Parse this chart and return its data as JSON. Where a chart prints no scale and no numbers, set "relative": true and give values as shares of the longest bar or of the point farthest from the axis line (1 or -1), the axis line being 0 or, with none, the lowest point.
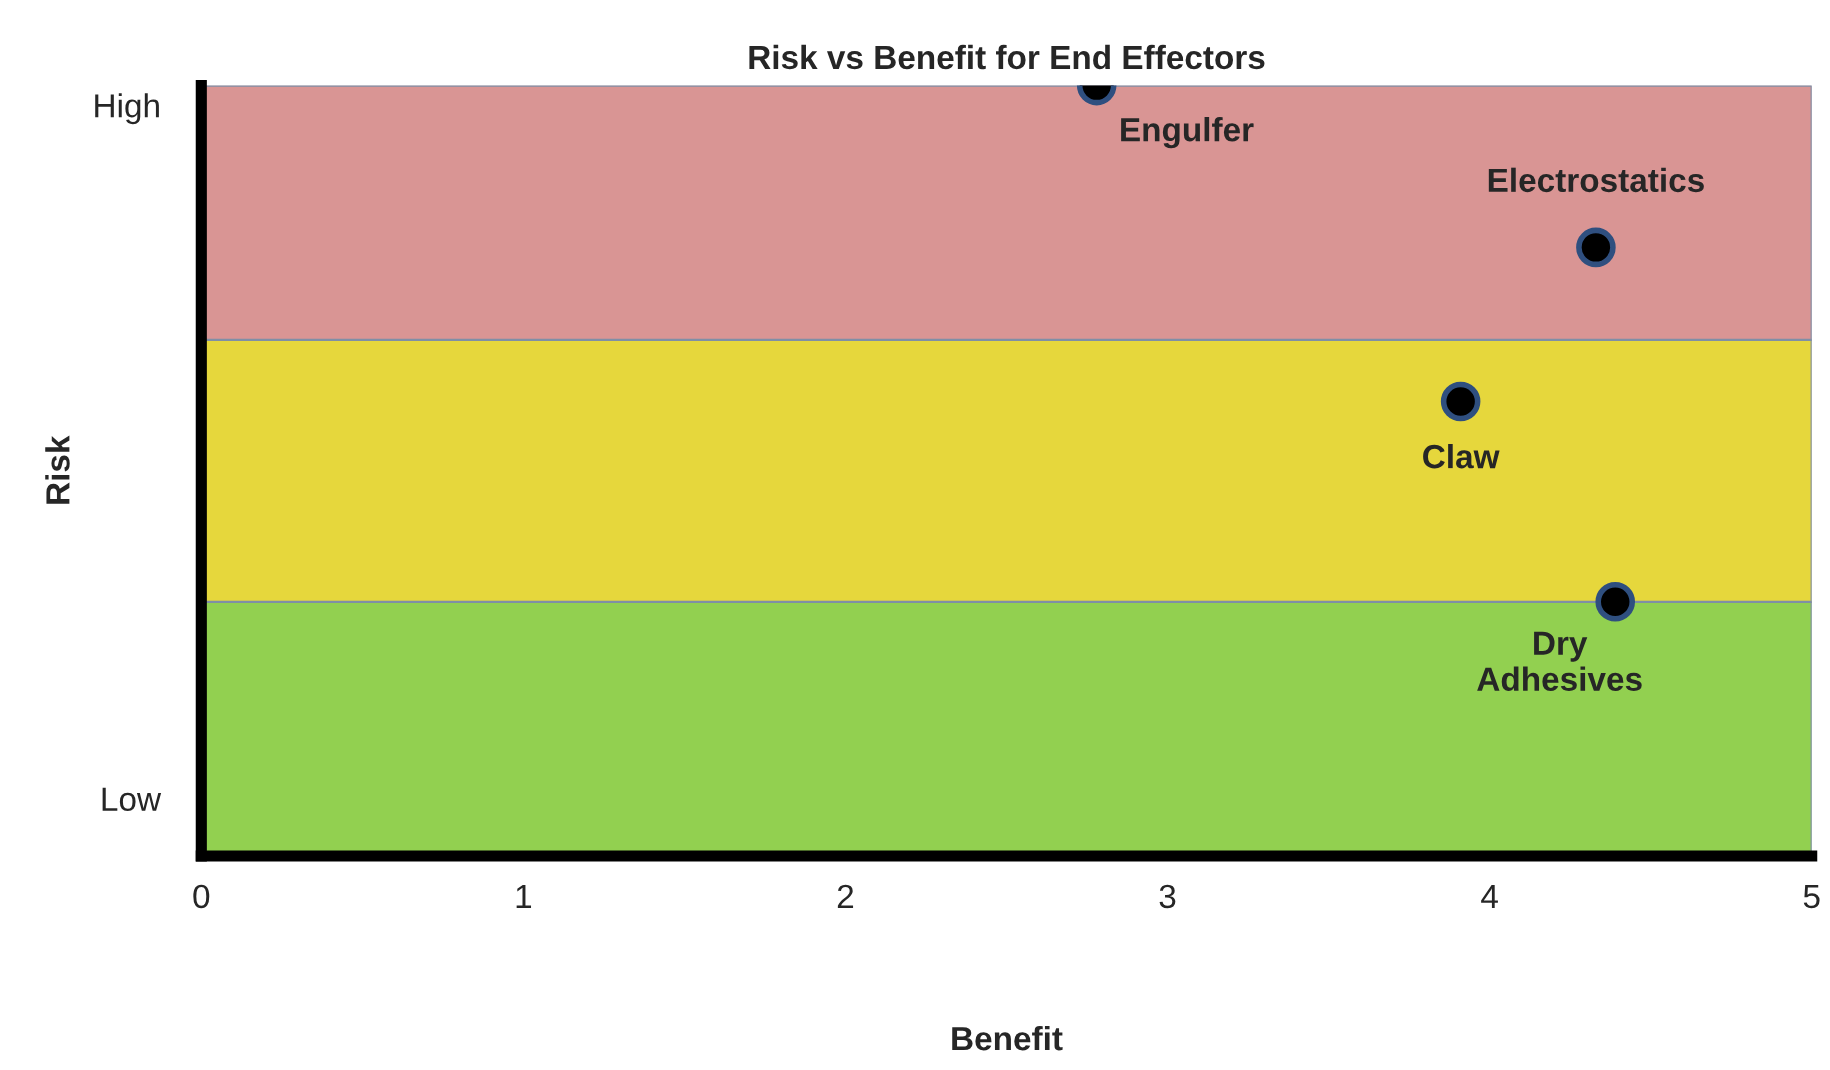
{
  "chart_data": {
    "type": "scatter",
    "title": "Risk vs Benefit for End Effectors",
    "xlabel": "Benefit",
    "ylabel": "Risk",
    "relative": true,
    "x": [
      2.78,
      4.33,
      3.91,
      4.39
    ],
    "series": [
      {
        "color": "#000000",
        "values": [
          1.0,
          0.79,
          0.59,
          0.33
        ]
      }
    ],
    "xlim": [
      0,
      5
    ],
    "xticks": [
      0,
      1,
      2,
      3,
      4,
      5
    ],
    "bands": [
      {
        "axis": "y",
        "from": 0,
        "to": 0.33,
        "color": "#92d050"
      },
      {
        "axis": "y",
        "from": 0.33,
        "to": 0.67,
        "color": "#e6d73c"
      },
      {
        "axis": "y",
        "from": 0.67,
        "to": 1.0,
        "color": "#d99594"
      }
    ],
    "annotations": [
      "High",
      "Low",
      {
        "text": "Engulfer",
        "x": 2.78,
        "y": 1.0
      },
      {
        "text": "Electrostatics",
        "x": 4.33,
        "y": 0.79
      },
      {
        "text": "Claw",
        "x": 3.91,
        "y": 0.59
      },
      {
        "text": "Dry\nAdhesives",
        "x": 4.39,
        "y": 0.33
      }
    ],
    "marker": "circle",
    "grid": false,
    "legend": false
  }
}
